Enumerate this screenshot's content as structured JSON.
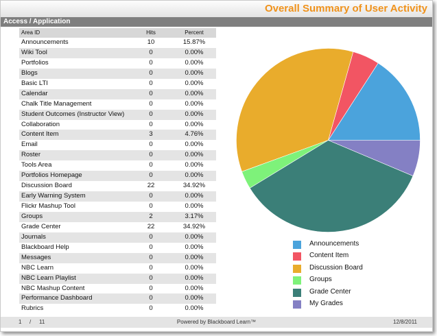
{
  "header": {
    "title": "Overall Summary of User Activity"
  },
  "section": {
    "title": "Access / Application"
  },
  "table": {
    "columns": [
      "Area ID",
      "Hits",
      "Percent"
    ],
    "rows": [
      {
        "area": "Announcements",
        "hits": "10",
        "percent": "15.87%"
      },
      {
        "area": "Wiki Tool",
        "hits": "0",
        "percent": "0.00%"
      },
      {
        "area": "Portfolios",
        "hits": "0",
        "percent": "0.00%"
      },
      {
        "area": "Blogs",
        "hits": "0",
        "percent": "0.00%"
      },
      {
        "area": "Basic LTI",
        "hits": "0",
        "percent": "0.00%"
      },
      {
        "area": "Calendar",
        "hits": "0",
        "percent": "0.00%"
      },
      {
        "area": "Chalk Title Management",
        "hits": "0",
        "percent": "0.00%"
      },
      {
        "area": "Student Outcomes (Instructor View)",
        "hits": "0",
        "percent": "0.00%"
      },
      {
        "area": "Collaboration",
        "hits": "0",
        "percent": "0.00%"
      },
      {
        "area": "Content Item",
        "hits": "3",
        "percent": "4.76%"
      },
      {
        "area": "Email",
        "hits": "0",
        "percent": "0.00%"
      },
      {
        "area": "Roster",
        "hits": "0",
        "percent": "0.00%"
      },
      {
        "area": "Tools Area",
        "hits": "0",
        "percent": "0.00%"
      },
      {
        "area": "Portfolios Homepage",
        "hits": "0",
        "percent": "0.00%"
      },
      {
        "area": "Discussion Board",
        "hits": "22",
        "percent": "34.92%"
      },
      {
        "area": "Early Warning System",
        "hits": "0",
        "percent": "0.00%"
      },
      {
        "area": "Flickr Mashup Tool",
        "hits": "0",
        "percent": "0.00%"
      },
      {
        "area": "Groups",
        "hits": "2",
        "percent": "3.17%"
      },
      {
        "area": "Grade Center",
        "hits": "22",
        "percent": "34.92%"
      },
      {
        "area": "Journals",
        "hits": "0",
        "percent": "0.00%"
      },
      {
        "area": "Blackboard Help",
        "hits": "0",
        "percent": "0.00%"
      },
      {
        "area": "Messages",
        "hits": "0",
        "percent": "0.00%"
      },
      {
        "area": "NBC Learn",
        "hits": "0",
        "percent": "0.00%"
      },
      {
        "area": "NBC Learn Playlist",
        "hits": "0",
        "percent": "0.00%"
      },
      {
        "area": "NBC Mashup Content",
        "hits": "0",
        "percent": "0.00%"
      },
      {
        "area": "Performance Dashboard",
        "hits": "0",
        "percent": "0.00%"
      },
      {
        "area": "Rubrics",
        "hits": "0",
        "percent": "0.00%"
      }
    ]
  },
  "chart_data": {
    "type": "pie",
    "title": "",
    "legend_position": "bottom",
    "slices": [
      {
        "label": "Announcements",
        "value": 15.87,
        "color": "#4ba3dc"
      },
      {
        "label": "Content Item",
        "value": 4.76,
        "color": "#f25563"
      },
      {
        "label": "Discussion Board",
        "value": 34.92,
        "color": "#e9ac2c"
      },
      {
        "label": "Groups",
        "value": 3.17,
        "color": "#7ef27a"
      },
      {
        "label": "Grade Center",
        "value": 34.92,
        "color": "#3b7f78"
      },
      {
        "label": "My Grades",
        "value": 6.35,
        "color": "#8480c4"
      }
    ]
  },
  "footer": {
    "page_current": "1",
    "page_separator": "/",
    "page_total": "11",
    "powered_by": "Powered by Blackboard Learn™",
    "date": "12/8/2011"
  }
}
